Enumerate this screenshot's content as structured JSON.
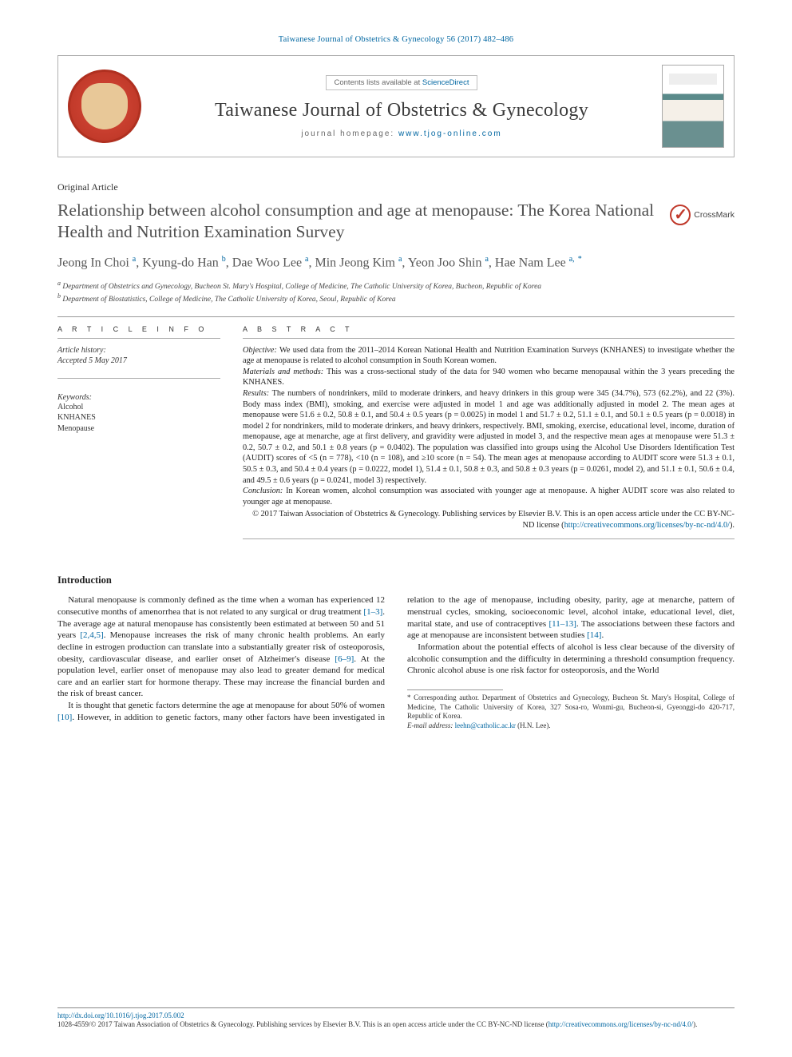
{
  "citation": "Taiwanese Journal of Obstetrics & Gynecology 56 (2017) 482–486",
  "header": {
    "contents_prefix": "Contents lists available at ",
    "contents_link": "ScienceDirect",
    "journal_name": "Taiwanese Journal of Obstetrics & Gynecology",
    "homepage_prefix": "journal homepage: ",
    "homepage_url": "www.tjog-online.com"
  },
  "article_type": "Original Article",
  "title": "Relationship between alcohol consumption and age at menopause: The Korea National Health and Nutrition Examination Survey",
  "crossmark_label": "CrossMark",
  "authors_html": "Jeong In Choi <sup class='sup-a'>a</sup>, Kyung-do Han <sup class='sup-b'>b</sup>, Dae Woo Lee <sup class='sup-a'>a</sup>, Min Jeong Kim <sup class='sup-a'>a</sup>, Yeon Joo Shin <sup class='sup-a'>a</sup>, Hae Nam Lee <sup class='sup-a'>a,</sup> <sup class='sup-star'>*</sup>",
  "affiliations": [
    "a Department of Obstetrics and Gynecology, Bucheon St. Mary's Hospital, College of Medicine, The Catholic University of Korea, Bucheon, Republic of Korea",
    "b Department of Biostatistics, College of Medicine, The Catholic University of Korea, Seoul, Republic of Korea"
  ],
  "section_heads": {
    "article_info": "A R T I C L E  I N F O",
    "abstract": "A B S T R A C T",
    "introduction": "Introduction"
  },
  "article_info": {
    "history_label": "Article history:",
    "history_value": "Accepted 5 May 2017",
    "keywords_label": "Keywords:",
    "keywords": [
      "Alcohol",
      "KNHANES",
      "Menopause"
    ]
  },
  "abstract": {
    "objective_label": "Objective:",
    "objective": "We used data from the 2011–2014 Korean National Health and Nutrition Examination Surveys (KNHANES) to investigate whether the age at menopause is related to alcohol consumption in South Korean women.",
    "methods_label": "Materials and methods:",
    "methods": "This was a cross-sectional study of the data for 940 women who became menopausal within the 3 years preceding the KNHANES.",
    "results_label": "Results:",
    "results": "The numbers of nondrinkers, mild to moderate drinkers, and heavy drinkers in this group were 345 (34.7%), 573 (62.2%), and 22 (3%). Body mass index (BMI), smoking, and exercise were adjusted in model 1 and age was additionally adjusted in model 2. The mean ages at menopause were 51.6 ± 0.2, 50.8 ± 0.1, and 50.4 ± 0.5 years (p = 0.0025) in model 1 and 51.7 ± 0.2, 51.1 ± 0.1, and 50.1 ± 0.5 years (p = 0.0018) in model 2 for nondrinkers, mild to moderate drinkers, and heavy drinkers, respectively. BMI, smoking, exercise, educational level, income, duration of menopause, age at menarche, age at first delivery, and gravidity were adjusted in model 3, and the respective mean ages at menopause were 51.3 ± 0.2, 50.7 ± 0.2, and 50.1 ± 0.8 years (p = 0.0402). The population was classified into groups using the Alcohol Use Disorders Identification Test (AUDIT) scores of <5 (n = 778), <10 (n = 108), and ≥10 score (n = 54). The mean ages at menopause according to AUDIT score were 51.3 ± 0.1, 50.5 ± 0.3, and 50.4 ± 0.4 years (p = 0.0222, model 1), 51.4 ± 0.1, 50.8 ± 0.3, and 50.8 ± 0.3 years (p = 0.0261, model 2), and 51.1 ± 0.1, 50.6 ± 0.4, and 49.5 ± 0.6 years (p = 0.0241, model 3) respectively.",
    "conclusion_label": "Conclusion:",
    "conclusion": "In Korean women, alcohol consumption was associated with younger age at menopause. A higher AUDIT score was also related to younger age at menopause.",
    "copyright": "© 2017 Taiwan Association of Obstetrics & Gynecology. Publishing services by Elsevier B.V. This is an open access article under the CC BY-NC-ND license (",
    "license_url": "http://creativecommons.org/licenses/by-nc-nd/4.0/",
    "copyright_tail": ")."
  },
  "introduction": {
    "p1a": "Natural menopause is commonly defined as the time when a woman has experienced 12 consecutive months of amenorrhea that is not related to any surgical or drug treatment ",
    "r1": "[1–3]",
    "p1b": ". The average age at natural menopause has consistently been estimated at between 50 and 51 years ",
    "r2": "[2,4,5]",
    "p1c": ". Menopause increases the risk of many chronic health problems. An early decline in estrogen production can translate into a substantially greater risk of osteoporosis, obesity, cardiovascular disease, and earlier onset of Alzheimer's disease ",
    "r3": "[6–9]",
    "p1d": ". At the population level, earlier onset of menopause may also lead to greater demand for medical care and an earlier start for hormone therapy. These may increase the financial burden and the risk of breast cancer.",
    "p2a": "It is thought that genetic factors determine the age at menopause for about 50% of women ",
    "r4": "[10]",
    "p2b": ". However, in addition to genetic factors, many other factors have been investigated in relation to the age of menopause, including obesity, parity, age at menarche, pattern of menstrual cycles, smoking, socioeconomic level, alcohol intake, educational level, diet, marital state, and use of contraceptives ",
    "r5": "[11–13]",
    "p2c": ". The associations between these factors and age at menopause are inconsistent between studies ",
    "r6": "[14]",
    "p2d": ".",
    "p3": "Information about the potential effects of alcohol is less clear because of the diversity of alcoholic consumption and the difficulty in determining a threshold consumption frequency. Chronic alcohol abuse is one risk factor for osteoporosis, and the World"
  },
  "footnote": {
    "corr_label": "* Corresponding author. ",
    "corr_text": "Department of Obstetrics and Gynecology, Bucheon St. Mary's Hospital, College of Medicine, The Catholic University of Korea, 327 Sosa-ro, Wonmi-gu, Bucheon-si, Gyeonggi-do 420-717, Republic of Korea.",
    "email_label": "E-mail address: ",
    "email": "leehn@catholic.ac.kr",
    "email_tail": " (H.N. Lee)."
  },
  "bottom": {
    "doi": "http://dx.doi.org/10.1016/j.tjog.2017.05.002",
    "issn_line_a": "1028-4559/© 2017 Taiwan Association of Obstetrics & Gynecology. Publishing services by Elsevier B.V. This is an open access article under the CC BY-NC-ND license (",
    "issn_link": "http://creativecommons.org/licenses/by-nc-nd/4.0/",
    "issn_line_b": ")."
  },
  "colors": {
    "link": "#0066a1",
    "text": "#1a1a1a",
    "rule": "#999999",
    "logo_bg": "#c23a2a"
  }
}
